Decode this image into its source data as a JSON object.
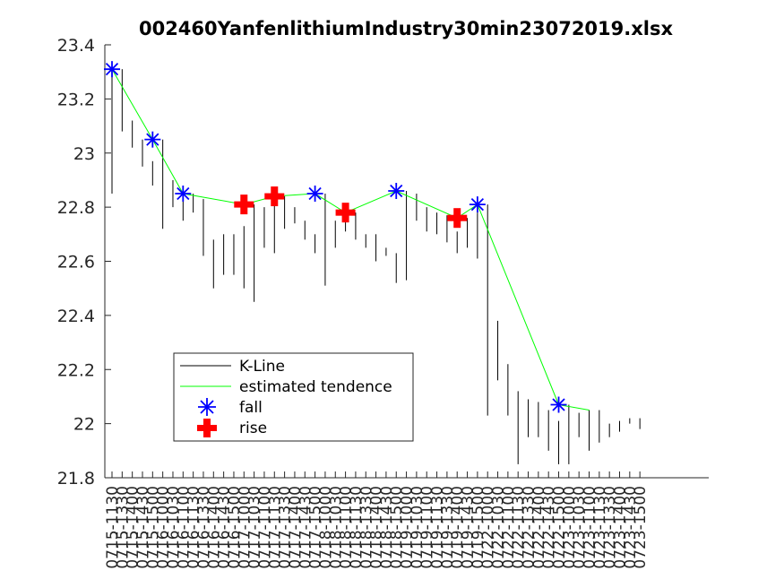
{
  "chart_data": {
    "type": "line",
    "title": "002460YanfenlithiumIndustry30min23072019.xlsx",
    "xlabel": "",
    "ylabel": "",
    "ylim": [
      21.8,
      23.4
    ],
    "yticks": [
      21.8,
      22,
      22.2,
      22.4,
      22.6,
      22.8,
      23,
      23.2,
      23.4
    ],
    "ytick_labels": [
      "21.8",
      "22",
      "22.2",
      "22.4",
      "22.6",
      "22.8",
      "23",
      "23.2",
      "23.4"
    ],
    "grid": false,
    "legend_position": "lower-left",
    "categories": [
      "0715-1130",
      "0715-1330",
      "0715-1400",
      "0715-1430",
      "0715-1500",
      "0716-1000",
      "0716-1030",
      "0716-1100",
      "0716-1130",
      "0716-1330",
      "0716-1400",
      "0716-1430",
      "0716-1500",
      "0717-1000",
      "0717-1030",
      "0717-1100",
      "0717-1130",
      "0717-1330",
      "0717-1400",
      "0717-1430",
      "0717-1500",
      "0718-1000",
      "0718-1030",
      "0718-1100",
      "0718-1130",
      "0718-1330",
      "0718-1400",
      "0718-1430",
      "0718-1500",
      "0719-1000",
      "0719-1030",
      "0719-1100",
      "0719-1130",
      "0719-1330",
      "0719-1400",
      "0719-1430",
      "0719-1500",
      "0722-1000",
      "0722-1030",
      "0722-1100",
      "0722-1130",
      "0722-1330",
      "0722-1400",
      "0722-1430",
      "0722-1500",
      "0723-1000",
      "0723-1030",
      "0723-1100",
      "0723-1130",
      "0723-1330",
      "0723-1400",
      "0723-1430",
      "0723-1500"
    ],
    "series": [
      {
        "name": "K-Line",
        "kind": "vertical-range",
        "color": "#000000",
        "low": [
          22.85,
          23.08,
          23.02,
          22.95,
          22.88,
          22.72,
          22.8,
          22.75,
          22.78,
          22.62,
          22.5,
          22.55,
          22.55,
          22.5,
          22.45,
          22.65,
          22.63,
          22.72,
          22.74,
          22.68,
          22.63,
          22.51,
          22.65,
          22.71,
          22.68,
          22.65,
          22.6,
          22.62,
          22.52,
          22.53,
          22.75,
          22.71,
          22.7,
          22.67,
          22.63,
          22.65,
          22.61,
          22.03,
          22.16,
          22.03,
          21.85,
          21.95,
          21.95,
          21.9,
          21.85,
          21.85,
          21.95,
          21.9,
          21.93,
          21.95,
          21.97,
          22.0,
          21.98
        ],
        "high": [
          23.3,
          23.31,
          23.12,
          23.05,
          22.97,
          23.05,
          22.9,
          22.83,
          22.85,
          22.83,
          22.68,
          22.7,
          22.7,
          22.73,
          22.81,
          22.8,
          22.83,
          22.84,
          22.8,
          22.75,
          22.7,
          22.85,
          22.75,
          22.76,
          22.78,
          22.7,
          22.7,
          22.65,
          22.63,
          22.86,
          22.85,
          22.8,
          22.78,
          22.77,
          22.71,
          22.76,
          22.78,
          22.81,
          22.38,
          22.22,
          22.12,
          22.09,
          22.08,
          22.05,
          22.01,
          22.07,
          22.04,
          22.05,
          22.05,
          22.0,
          22.01,
          22.02,
          22.02
        ]
      },
      {
        "name": "estimated tendence",
        "kind": "line",
        "color": "#00ff00",
        "points": [
          {
            "x": 1,
            "y": 23.31
          },
          {
            "x": 5,
            "y": 23.05
          },
          {
            "x": 8,
            "y": 22.85
          },
          {
            "x": 14,
            "y": 22.81
          },
          {
            "x": 17,
            "y": 22.84
          },
          {
            "x": 21,
            "y": 22.85
          },
          {
            "x": 24,
            "y": 22.78
          },
          {
            "x": 29,
            "y": 22.86
          },
          {
            "x": 35,
            "y": 22.76
          },
          {
            "x": 37,
            "y": 22.81
          },
          {
            "x": 45,
            "y": 22.07
          },
          {
            "x": 48,
            "y": 22.05
          }
        ]
      },
      {
        "name": "fall",
        "kind": "marker",
        "marker": "asterisk",
        "color": "#0000ff",
        "points": [
          {
            "x": 1,
            "y": 23.31
          },
          {
            "x": 5,
            "y": 23.05
          },
          {
            "x": 8,
            "y": 22.85
          },
          {
            "x": 21,
            "y": 22.85
          },
          {
            "x": 29,
            "y": 22.86
          },
          {
            "x": 37,
            "y": 22.81
          },
          {
            "x": 45,
            "y": 22.07
          }
        ]
      },
      {
        "name": "rise",
        "kind": "marker",
        "marker": "plus",
        "color": "#ff0000",
        "points": [
          {
            "x": 14,
            "y": 22.81
          },
          {
            "x": 17,
            "y": 22.84
          },
          {
            "x": 24,
            "y": 22.78
          },
          {
            "x": 35,
            "y": 22.76
          }
        ]
      }
    ]
  }
}
